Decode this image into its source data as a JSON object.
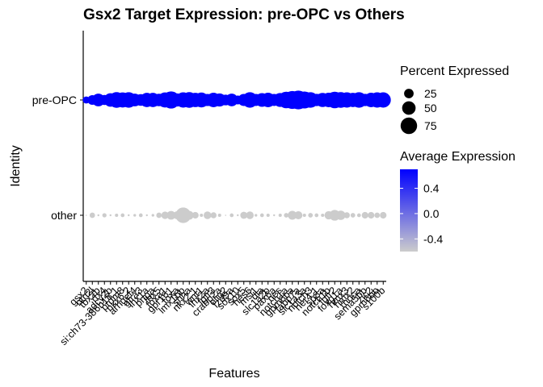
{
  "chart_data": {
    "type": "dotplot",
    "title": "Gsx2 Target Expression: pre-OPC vs Others",
    "xlabel": "Features",
    "ylabel": "Identity",
    "identities": [
      "pre-OPC",
      "other"
    ],
    "features": [
      "gsx2",
      "ntn2l",
      "tbx2b",
      "rfx4",
      "adcy2b",
      "si:ch73-386h18.1",
      "prdm8",
      "nkx6.2",
      "arhgef4",
      "gfra3",
      "lhx1a",
      "prtga",
      "lhx5",
      "foxa1",
      "gpr161",
      "foxa",
      "lmx1bb",
      "shha",
      "nkx2.1",
      "wnt1",
      "lhx2a",
      "fgfr3",
      "crabp2a",
      "olig2",
      "fzd9a",
      "sox10",
      "sox5",
      "hes6",
      "msi1",
      "dla",
      "slc1a2b",
      "pax6a",
      "nes",
      "notch1a",
      "gpm6ba",
      "fabp7a",
      "slc1a3a",
      "notch3",
      "her4.1",
      "sp8a",
      "notch1b",
      "fgfr2",
      "foxg1a",
      "hmx3",
      "hmx2",
      "rhoca",
      "sema5bb",
      "zic2",
      "gpm6bb",
      "s100b"
    ],
    "pct_pre": [
      14,
      26,
      45,
      28,
      50,
      68,
      63,
      66,
      45,
      38,
      56,
      56,
      43,
      63,
      82,
      48,
      64,
      68,
      57,
      61,
      41,
      58,
      48,
      32,
      44,
      22,
      40,
      66,
      40,
      52,
      58,
      40,
      54,
      76,
      88,
      98,
      80,
      67,
      42,
      55,
      58,
      76,
      68,
      64,
      56,
      67,
      42,
      58,
      64,
      64
    ],
    "pct_other": [
      0,
      8,
      1,
      5,
      1,
      3,
      4,
      1,
      2,
      4,
      1,
      2,
      8,
      15,
      21,
      18,
      66,
      21,
      12,
      3,
      16,
      10,
      3,
      0,
      4,
      1,
      14,
      16,
      2,
      4,
      3,
      1,
      3,
      6,
      22,
      18,
      3,
      6,
      4,
      3,
      19,
      32,
      24,
      10,
      6,
      4,
      12,
      12,
      8,
      12
    ],
    "avg_exp_color_scale": {
      "min": -0.6,
      "max": 0.7,
      "low_color": "#cccccc",
      "high_color": "#0000ff"
    },
    "avg_exp_pre": 0.7,
    "avg_exp_other": -0.6,
    "legend_percent": {
      "title": "Percent Expressed",
      "values": [
        25,
        50,
        75
      ],
      "labels": [
        "25",
        "50",
        "75"
      ]
    },
    "legend_avg": {
      "title": "Average Expression",
      "labels": [
        "0.4",
        "0.0",
        "-0.4"
      ],
      "values": [
        0.4,
        0.0,
        -0.4
      ]
    },
    "grid": false
  }
}
